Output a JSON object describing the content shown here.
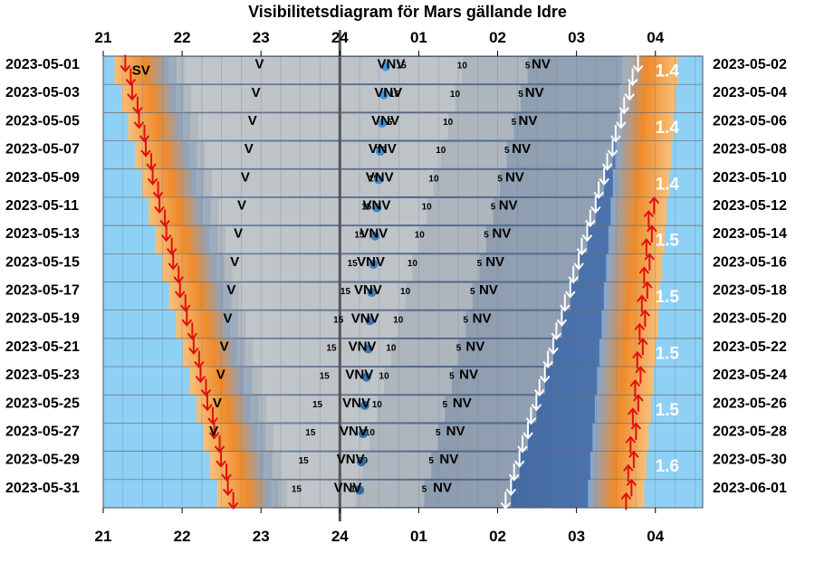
{
  "chart_data": {
    "type": "heatmap",
    "title": "Visibilitetsdiagram för Mars gällande Idre",
    "hour_ticks": [
      "21",
      "22",
      "23",
      "24",
      "01",
      "02",
      "03",
      "04"
    ],
    "x_range_hours": [
      21,
      28.6
    ],
    "midnight_hour": 24,
    "left_dates": [
      "2023-05-01",
      "2023-05-03",
      "2023-05-05",
      "2023-05-07",
      "2023-05-09",
      "2023-05-11",
      "2023-05-13",
      "2023-05-15",
      "2023-05-17",
      "2023-05-19",
      "2023-05-21",
      "2023-05-23",
      "2023-05-25",
      "2023-05-27",
      "2023-05-29",
      "2023-05-31"
    ],
    "right_dates": [
      "2023-05-02",
      "2023-05-04",
      "2023-05-06",
      "2023-05-08",
      "2023-05-10",
      "2023-05-12",
      "2023-05-14",
      "2023-05-16",
      "2023-05-18",
      "2023-05-20",
      "2023-05-22",
      "2023-05-24",
      "2023-05-26",
      "2023-05-28",
      "2023-05-30",
      "2023-06-01"
    ],
    "sunset_hour": {
      "first": 21.28,
      "last": 22.58
    },
    "sunrise_hour": {
      "first": 28.15,
      "last": 27.72
    },
    "mars_set_hour": {
      "first": 27.78,
      "last": 26.17
    },
    "altitude_labels": [
      "15",
      "10",
      "5"
    ],
    "altitude_hours": {
      "15": {
        "first": 24.78,
        "last": 23.45
      },
      "10": {
        "first": 25.55,
        "last": 24.2
      },
      "5": {
        "first": 26.38,
        "last": 25.07
      }
    },
    "direction_labels": [
      {
        "text": "SV",
        "hour_first": 21.45,
        "hour_last": 21.45,
        "rows": [
          0
        ]
      },
      {
        "text": "V",
        "hour_first": 22.98,
        "hour_last": 22.4,
        "rows": [
          0,
          1,
          2,
          3,
          4,
          5,
          6,
          7,
          8,
          9,
          10,
          11,
          12,
          13
        ]
      },
      {
        "text": "VNV",
        "hour_first": 24.65,
        "hour_last": 24.1
      },
      {
        "text": "NV",
        "hour_first": 26.55,
        "hour_last": 25.3
      }
    ],
    "magnitudes": [
      "1.4",
      "1.4",
      "1.4",
      "1.5",
      "1.5",
      "1.5",
      "1.5",
      "1.6"
    ],
    "colors": {
      "day": "#8fd0f5",
      "twilight": "#f0913a",
      "night": "#3a5f94",
      "sun_arrow": "#e01010",
      "moon_arrow": "#ffffff"
    },
    "grid": true
  }
}
